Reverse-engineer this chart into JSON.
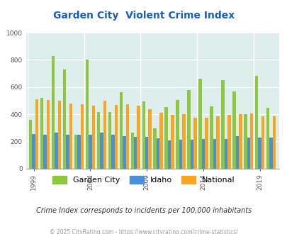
{
  "title": "Garden City  Violent Crime Index",
  "years": [
    1999,
    2000,
    2001,
    2002,
    2003,
    2004,
    2005,
    2006,
    2007,
    2008,
    2009,
    2010,
    2011,
    2012,
    2013,
    2014,
    2015,
    2016,
    2017,
    2018,
    2019,
    2020
  ],
  "garden_city": [
    360,
    520,
    830,
    730,
    250,
    800,
    415,
    415,
    560,
    265,
    495,
    295,
    450,
    505,
    580,
    660,
    460,
    650,
    570,
    400,
    680,
    445
  ],
  "idaho": [
    255,
    250,
    265,
    250,
    248,
    250,
    265,
    250,
    240,
    235,
    235,
    225,
    205,
    210,
    210,
    215,
    215,
    215,
    240,
    230,
    230,
    230
  ],
  "national": [
    510,
    505,
    500,
    480,
    475,
    465,
    500,
    470,
    475,
    465,
    435,
    410,
    395,
    400,
    375,
    375,
    385,
    395,
    400,
    405,
    385,
    385
  ],
  "gc_color": "#8dc63f",
  "id_color": "#4a90d9",
  "nat_color": "#f5a623",
  "bg_color": "#deeeed",
  "title_color": "#1a5eb8",
  "ylabel_ticks": [
    0,
    200,
    400,
    600,
    800,
    1000
  ],
  "xtick_years": [
    1999,
    2004,
    2009,
    2014,
    2019
  ],
  "ylim": [
    0,
    1000
  ],
  "subtitle": "Crime Index corresponds to incidents per 100,000 inhabitants",
  "footer": "© 2025 CityRating.com - https://www.cityrating.com/crime-statistics/",
  "legend_labels": [
    "Garden City",
    "Idaho",
    "National"
  ]
}
